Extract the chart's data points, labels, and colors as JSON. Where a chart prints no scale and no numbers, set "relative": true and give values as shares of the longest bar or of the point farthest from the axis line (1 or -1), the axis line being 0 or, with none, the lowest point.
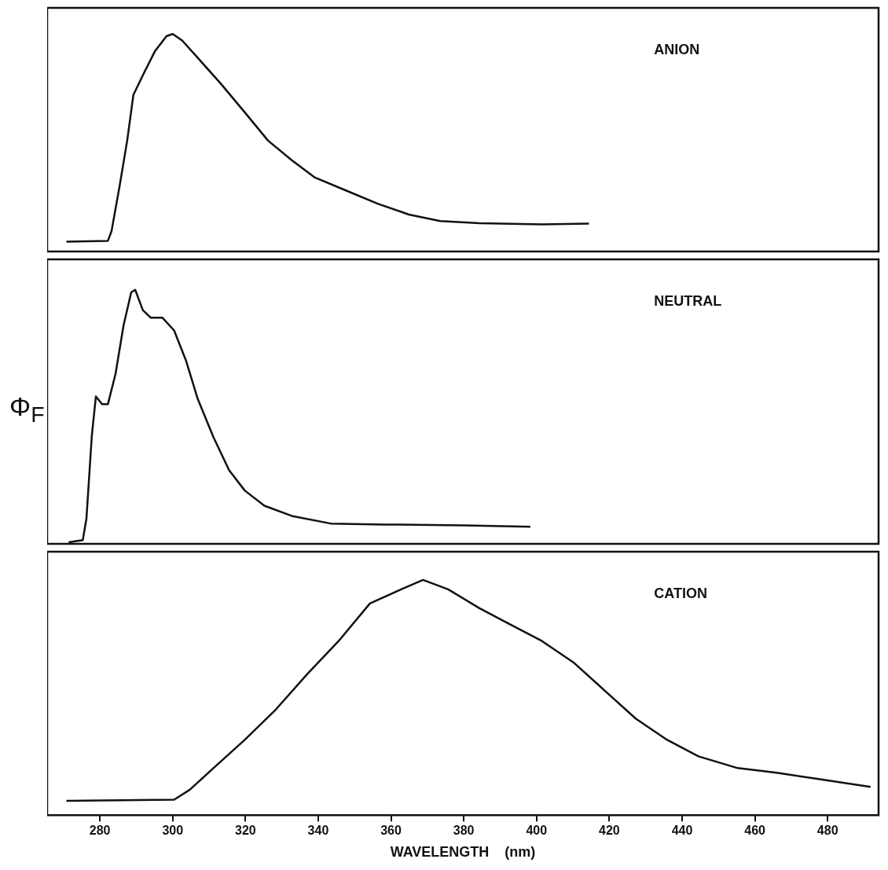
{
  "chart_data": [
    {
      "type": "line",
      "relative": true,
      "tick_labels": false,
      "xlim": [
        265.5,
        494
      ],
      "ylabel": "Φ$_{F}$",
      "annotations": [
        "ANION"
      ],
      "series": [
        {
          "color": "#111111",
          "x": [
            270.8,
            282.2,
            283.2,
            285.4,
            287.5,
            289.2,
            291.8,
            295.1,
            298.3,
            300,
            302.6,
            306.9,
            313.3,
            319.8,
            326.2,
            332.7,
            339.1,
            347.7,
            356.3,
            364.9,
            373.5,
            384.3,
            401.5,
            414.4
          ],
          "values": [
            0.045,
            0.049,
            0.094,
            0.3,
            0.51,
            0.72,
            0.81,
            0.92,
            0.99,
            1,
            0.97,
            0.89,
            0.77,
            0.64,
            0.51,
            0.42,
            0.34,
            0.28,
            0.22,
            0.17,
            0.14,
            0.13,
            0.125,
            0.128
          ]
        }
      ]
    },
    {
      "type": "line",
      "relative": true,
      "tick_labels": false,
      "xlim": [
        265.5,
        494
      ],
      "annotations": [
        "NEUTRAL"
      ],
      "series": [
        {
          "color": "#111111",
          "x": [
            271.4,
            275.3,
            276.3,
            277.8,
            278.9,
            280.6,
            282.2,
            284.3,
            286.5,
            288.6,
            289.7,
            291.8,
            294,
            297.2,
            300.4,
            303.7,
            306.9,
            311.2,
            315.5,
            319.8,
            325.2,
            332.7,
            343.4,
            358.5,
            380,
            398.3
          ],
          "values": [
            0.006,
            0.015,
            0.1,
            0.43,
            0.58,
            0.55,
            0.55,
            0.67,
            0.86,
            0.99,
            1,
            0.92,
            0.89,
            0.89,
            0.84,
            0.72,
            0.57,
            0.42,
            0.29,
            0.21,
            0.15,
            0.11,
            0.08,
            0.076,
            0.073,
            0.067
          ]
        }
      ]
    },
    {
      "type": "line",
      "relative": true,
      "tick_labels": "x",
      "xlim": [
        265.5,
        494
      ],
      "xticks": [
        280,
        300,
        320,
        340,
        360,
        380,
        400,
        420,
        440,
        460,
        480
      ],
      "xlabel": "WAVELENGTH    (nm)",
      "annotations": [
        "CATION"
      ],
      "series": [
        {
          "color": "#111111",
          "x": [
            270.8,
            300.4,
            304.7,
            311.2,
            319.8,
            328.4,
            337,
            345.6,
            354.2,
            362.8,
            368.8,
            375.7,
            384.3,
            392.9,
            401.5,
            410.1,
            418.7,
            427.3,
            435.9,
            444.5,
            455.3,
            466,
            476.8,
            487.5,
            491.8
          ],
          "values": [
            0.061,
            0.066,
            0.108,
            0.2,
            0.32,
            0.45,
            0.6,
            0.74,
            0.9,
            0.96,
            1,
            0.96,
            0.88,
            0.81,
            0.74,
            0.65,
            0.53,
            0.41,
            0.32,
            0.25,
            0.2,
            0.18,
            0.155,
            0.13,
            0.12
          ]
        }
      ]
    }
  ]
}
